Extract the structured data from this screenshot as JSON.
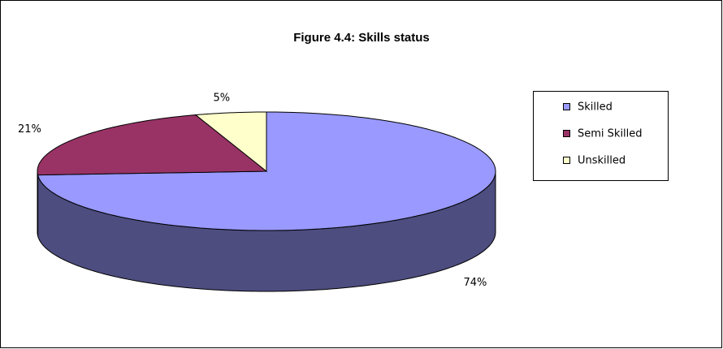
{
  "chart_data": {
    "type": "pie3d",
    "title": "Figure 4.4: Skills status",
    "categories": [
      "Skilled",
      "Semi Skilled",
      "Unskilled"
    ],
    "values": [
      74,
      21,
      5
    ],
    "value_labels": [
      "74%",
      "21%",
      "5%"
    ],
    "colors": [
      "#9999ff",
      "#993366",
      "#ffffcc"
    ],
    "legend": "right"
  }
}
